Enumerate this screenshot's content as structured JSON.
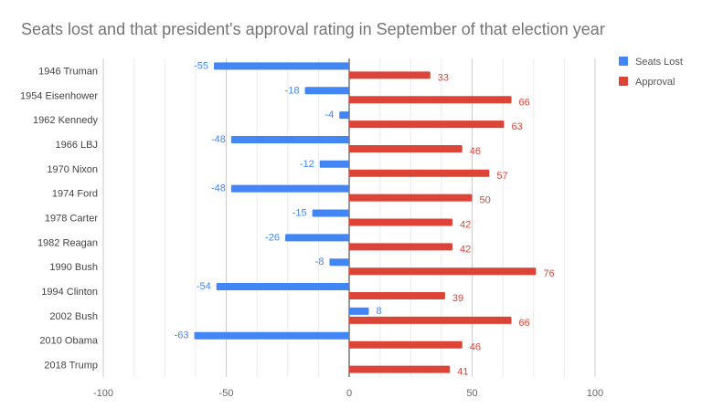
{
  "chart_data": {
    "type": "bar",
    "orientation": "horizontal",
    "title": "Seats lost and that president's approval rating in September of that election year",
    "categories": [
      "1946 Truman",
      "1954 Eisenhower",
      "1962 Kennedy",
      "1966 LBJ",
      "1970 Nixon",
      "1974 Ford",
      "1978 Carter",
      "1982 Reagan",
      "1990 Bush",
      "1994 Clinton",
      "2002 Bush",
      "2010 Obama",
      "2018 Trump"
    ],
    "series": [
      {
        "name": "Seats Lost",
        "color": "#4285f4",
        "values": [
          -55,
          -18,
          -4,
          -48,
          -12,
          -48,
          -15,
          -26,
          -8,
          -54,
          8,
          -63,
          null
        ]
      },
      {
        "name": "Approval",
        "color": "#db4437",
        "values": [
          33,
          66,
          63,
          46,
          57,
          50,
          42,
          42,
          76,
          39,
          66,
          46,
          41
        ]
      }
    ],
    "xlim": [
      -100,
      100
    ],
    "xticks": [
      "-100",
      "-50",
      "0",
      "50",
      "100"
    ],
    "grid": true,
    "legend": "right",
    "data_labels": true
  }
}
